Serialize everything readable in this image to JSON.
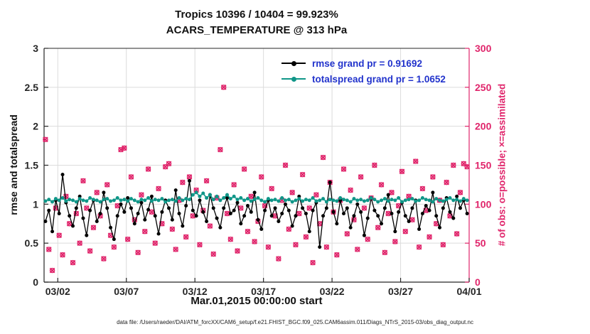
{
  "colors": {
    "crimson": "#e0256b",
    "teal": "#109688",
    "black_series": "#000000",
    "legend_text_blue": "#2233cc",
    "grid": "#dcdcdc",
    "axis": "#262626",
    "background": "#ffffff"
  },
  "footer": {
    "datafile": "data file: /Users/raeder/DAI/ATM_forcXX/CAM6_setup/f.e21.FHIST_BGC.f09_025.CAM6assim.011/Diags_NTrS_2015-03/obs_diag_output.nc"
  },
  "chart_data": {
    "type": "line",
    "title": "Tropics 10396 / 10404 = 99.923%",
    "subtitle": "ACARS_TEMPERATURE @ 313 hPa",
    "xlabel": "Mar.01,2015 00:00:00 start",
    "ylabel_left": "rmse and totalspread",
    "ylabel_right": "# of obs: o=possible; ×=assimilated",
    "grid": true,
    "legend_position": "top-center-inside",
    "x_domain": [
      1,
      32
    ],
    "x_ticks": [
      {
        "v": 2,
        "label": "03/02"
      },
      {
        "v": 7,
        "label": "03/07"
      },
      {
        "v": 12,
        "label": "03/12"
      },
      {
        "v": 17,
        "label": "03/17"
      },
      {
        "v": 22,
        "label": "03/22"
      },
      {
        "v": 27,
        "label": "03/27"
      },
      {
        "v": 32,
        "label": "04/01"
      }
    ],
    "y_left": {
      "range": [
        0,
        3
      ],
      "ticks": [
        0,
        0.5,
        1,
        1.5,
        2,
        2.5,
        3
      ]
    },
    "y_right": {
      "range": [
        0,
        300
      ],
      "ticks": [
        0,
        50,
        100,
        150,
        200,
        250,
        300
      ]
    },
    "x_start": 1.1,
    "x_step": 0.25,
    "stats": {
      "possible": 10404,
      "assimilated": 10396,
      "pct_assimilated": 99.923,
      "rmse_grand_mean": 0.91692,
      "totalspread_grand_mean": 1.0652
    },
    "series": [
      {
        "name": "rmse grand pr = 0.91692",
        "axis": "left",
        "marker": "dot",
        "color_key": "black_series",
        "values": [
          0.78,
          0.92,
          0.65,
          1.05,
          0.88,
          1.38,
          1.02,
          0.85,
          0.72,
          0.95,
          1.1,
          0.82,
          0.6,
          0.92,
          1.05,
          0.78,
          0.88,
          1.15,
          0.95,
          0.7,
          0.55,
          0.85,
          1.0,
          0.9,
          1.08,
          0.95,
          0.75,
          0.88,
          1.02,
          0.8,
          0.93,
          1.1,
          0.85,
          0.62,
          0.9,
          1.05,
          0.95,
          0.8,
          1.18,
          0.88,
          0.72,
          0.98,
          1.3,
          0.92,
          0.85,
          1.05,
          0.9,
          0.78,
          1.12,
          0.95,
          0.82,
          0.7,
          0.95,
          1.08,
          0.88,
          0.92,
          1.02,
          0.75,
          0.85,
          0.98,
          0.9,
          1.15,
          0.8,
          0.68,
          0.92,
          1.05,
          0.85,
          0.95,
          0.78,
          0.88,
          1.0,
          0.92,
          0.72,
          0.85,
          1.1,
          0.95,
          0.88,
          0.65,
          0.92,
          1.02,
          0.45,
          0.85,
          0.95,
          1.28,
          0.9,
          0.75,
          1.05,
          0.88,
          0.95,
          0.7,
          0.85,
          1.0,
          0.9,
          0.6,
          0.82,
          1.08,
          0.92,
          0.85,
          0.75,
          0.95,
          1.12,
          0.88,
          0.65,
          0.9,
          1.02,
          0.85,
          0.78,
          0.95,
          1.05,
          0.68,
          0.88,
          0.98,
          0.92,
          1.15,
          0.85,
          0.7,
          0.95,
          1.08,
          0.9,
          0.82,
          1.1,
          0.95,
          1.05,
          0.88
        ]
      },
      {
        "name": "totalspread grand pr = 1.0652",
        "axis": "left",
        "marker": "dot",
        "color_key": "teal",
        "values": [
          1.04,
          1.06,
          1.03,
          1.07,
          1.05,
          1.08,
          1.04,
          1.06,
          1.05,
          1.03,
          1.07,
          1.05,
          1.04,
          1.08,
          1.06,
          1.05,
          1.03,
          1.06,
          1.07,
          1.04,
          1.05,
          1.08,
          1.05,
          1.06,
          1.04,
          1.07,
          1.05,
          1.03,
          1.06,
          1.05,
          1.08,
          1.04,
          1.06,
          1.05,
          1.07,
          1.03,
          1.05,
          1.06,
          1.04,
          1.08,
          1.05,
          1.07,
          1.06,
          1.12,
          1.15,
          1.1,
          1.14,
          1.08,
          1.12,
          1.06,
          1.1,
          1.05,
          1.08,
          1.12,
          1.07,
          1.1,
          1.06,
          1.08,
          1.05,
          1.07,
          1.04,
          1.06,
          1.08,
          1.05,
          1.03,
          1.07,
          1.05,
          1.06,
          1.04,
          1.08,
          1.05,
          1.06,
          1.03,
          1.05,
          1.07,
          1.04,
          1.06,
          1.05,
          1.08,
          1.04,
          1.05,
          1.07,
          1.03,
          1.06,
          1.05,
          1.04,
          1.08,
          1.06,
          1.05,
          1.03,
          1.07,
          1.05,
          1.06,
          1.04,
          1.05,
          1.08,
          1.06,
          1.03,
          1.05,
          1.07,
          1.04,
          1.06,
          1.05,
          1.08,
          1.03,
          1.05,
          1.06,
          1.07,
          1.04,
          1.05,
          1.08,
          1.06,
          1.05,
          1.03,
          1.07,
          1.05,
          1.04,
          1.06,
          1.08,
          1.05,
          1.06,
          1.04,
          1.07,
          1.05
        ]
      },
      {
        "name": "observations (o=possible, x=assimilated)",
        "axis": "right",
        "marker": "ox",
        "color_key": "crimson",
        "values": [
          183,
          42,
          15,
          95,
          60,
          35,
          110,
          75,
          25,
          88,
          50,
          130,
          95,
          40,
          70,
          115,
          85,
          30,
          125,
          60,
          45,
          98,
          170,
          172,
          55,
          135,
          80,
          38,
          112,
          65,
          145,
          90,
          50,
          120,
          75,
          148,
          152,
          68,
          42,
          105,
          128,
          58,
          135,
          85,
          118,
          48,
          92,
          130,
          72,
          36,
          108,
          170,
          250,
          88,
          55,
          125,
          40,
          95,
          145,
          65,
          110,
          52,
          78,
          135,
          98,
          45,
          120,
          85,
          30,
          105,
          150,
          68,
          115,
          48,
          88,
          138,
          58,
          95,
          25,
          112,
          75,
          160,
          45,
          128,
          90,
          35,
          105,
          145,
          62,
          118,
          80,
          42,
          135,
          95,
          55,
          108,
          150,
          70,
          125,
          38,
          88,
          115,
          52,
          98,
          142,
          65,
          110,
          80,
          155,
          45,
          120,
          92,
          58,
          135,
          75,
          105,
          48,
          128,
          85,
          150,
          62,
          115,
          152,
          148
        ]
      }
    ]
  }
}
